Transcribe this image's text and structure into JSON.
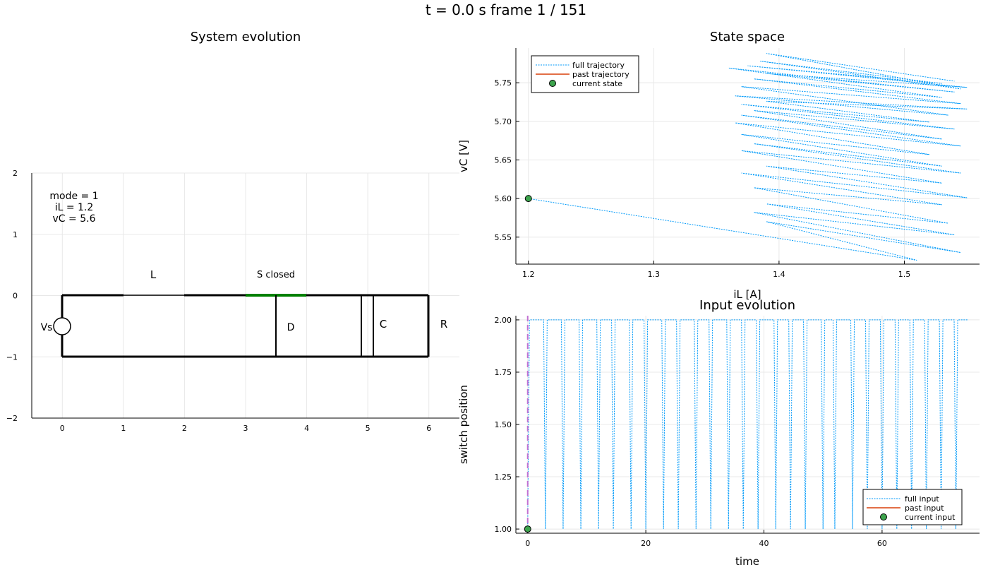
{
  "figure": {
    "suptitle": "t = 0.0 s   frame 1 / 151"
  },
  "colors": {
    "trajectory": "#009af9",
    "past": "#e26f46",
    "marker": "#3da44d",
    "time_line": "#c271d2",
    "switch_closed": "#008000",
    "circuit": "#000000"
  },
  "circuit_panel": {
    "title": "System evolution",
    "xlim": [
      -0.5,
      6.5
    ],
    "ylim": [
      -2,
      2
    ],
    "xticks": [
      "0",
      "1",
      "2",
      "3",
      "4",
      "5",
      "6"
    ],
    "yticks": [
      "2",
      "1",
      "0",
      "−1",
      "−2"
    ],
    "info": [
      "mode = 1",
      "iL = 1.2",
      "vC = 5.6"
    ],
    "labels": {
      "inductor": "L",
      "switch": "S closed",
      "source": "Vs",
      "diode": "D",
      "capacitor": "C",
      "resistor": "R"
    }
  },
  "chart_data": [
    {
      "type": "line",
      "title": "State space",
      "xlabel": "iL [A]",
      "ylabel": "vC [V]",
      "xlim": [
        1.19,
        1.56
      ],
      "ylim": [
        5.515,
        5.795
      ],
      "xticks": [
        1.2,
        1.3,
        1.4,
        1.5
      ],
      "yticks": [
        5.55,
        5.6,
        5.65,
        5.7,
        5.75
      ],
      "grid": true,
      "legend_position": "top-left",
      "series": [
        {
          "name": "full trajectory",
          "style": "dotted",
          "points": [
            [
              1.2,
              5.6
            ],
            [
              1.51,
              5.52
            ],
            [
              1.39,
              5.57
            ],
            [
              1.545,
              5.53
            ],
            [
              1.38,
              5.582
            ],
            [
              1.54,
              5.553
            ],
            [
              1.39,
              5.593
            ],
            [
              1.535,
              5.568
            ],
            [
              1.38,
              5.614
            ],
            [
              1.53,
              5.592
            ],
            [
              1.37,
              5.633
            ],
            [
              1.55,
              5.601
            ],
            [
              1.39,
              5.642
            ],
            [
              1.53,
              5.62
            ],
            [
              1.37,
              5.662
            ],
            [
              1.545,
              5.633
            ],
            [
              1.38,
              5.671
            ],
            [
              1.53,
              5.642
            ],
            [
              1.37,
              5.683
            ],
            [
              1.52,
              5.657
            ],
            [
              1.365,
              5.698
            ],
            [
              1.545,
              5.668
            ],
            [
              1.37,
              5.708
            ],
            [
              1.53,
              5.677
            ],
            [
              1.38,
              5.714
            ],
            [
              1.54,
              5.69
            ],
            [
              1.37,
              5.722
            ],
            [
              1.52,
              5.699
            ],
            [
              1.39,
              5.726
            ],
            [
              1.55,
              5.716
            ],
            [
              1.365,
              5.733
            ],
            [
              1.535,
              5.708
            ],
            [
              1.37,
              5.745
            ],
            [
              1.545,
              5.723
            ],
            [
              1.38,
              5.755
            ],
            [
              1.53,
              5.731
            ],
            [
              1.36,
              5.769
            ],
            [
              1.54,
              5.738
            ],
            [
              1.39,
              5.762
            ],
            [
              1.55,
              5.744
            ],
            [
              1.375,
              5.772
            ],
            [
              1.53,
              5.749
            ],
            [
              1.385,
              5.778
            ],
            [
              1.545,
              5.742
            ],
            [
              1.39,
              5.788
            ],
            [
              1.54,
              5.752
            ]
          ]
        },
        {
          "name": "past trajectory",
          "style": "solid",
          "points": [
            [
              1.2,
              5.6
            ]
          ]
        },
        {
          "name": "current state",
          "style": "marker",
          "points": [
            [
              1.2,
              5.6
            ]
          ]
        }
      ]
    },
    {
      "type": "line",
      "title": "Input evolution",
      "xlabel": "time",
      "ylabel": "switch position",
      "xlim": [
        -2,
        76.5
      ],
      "ylim": [
        0.98,
        2.02
      ],
      "xticks": [
        0,
        20,
        40,
        60
      ],
      "yticks": [
        1.0,
        1.25,
        1.5,
        1.75,
        2.0
      ],
      "grid": true,
      "legend_position": "bottom-right",
      "current_time": 0,
      "series": [
        {
          "name": "full input",
          "style": "dotted",
          "low_times": [
            0,
            3,
            6,
            9,
            12,
            14.5,
            17.5,
            20,
            23,
            25.5,
            28.5,
            31,
            34,
            36.5,
            39,
            42,
            44.5,
            47,
            50,
            52,
            55,
            57.5,
            60,
            62.5,
            65,
            67.5,
            70,
            72.5
          ],
          "end_time": 74.5
        },
        {
          "name": "past input",
          "style": "solid",
          "points": [
            [
              0,
              1.0
            ]
          ]
        },
        {
          "name": "current input",
          "style": "marker",
          "points": [
            [
              0,
              1.0
            ]
          ]
        }
      ]
    }
  ]
}
